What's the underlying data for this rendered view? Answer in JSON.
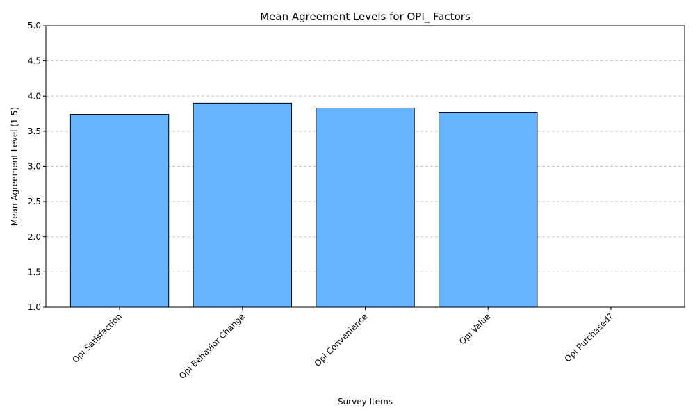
{
  "chart_data": {
    "type": "bar",
    "title": "Mean Agreement Levels for OPI_ Factors",
    "xlabel": "Survey Items",
    "ylabel": "Mean Agreement Level (1-5)",
    "categories": [
      "Opi Satisfaction",
      "Opi Behavior Change",
      "Opi Convenience",
      "Opi Value",
      "Opi Purchased?"
    ],
    "values": [
      3.74,
      3.9,
      3.83,
      3.77,
      null
    ],
    "ylim": [
      1.0,
      5.0
    ],
    "yticks": [
      1.0,
      1.5,
      2.0,
      2.5,
      3.0,
      3.5,
      4.0,
      4.5,
      5.0
    ],
    "grid": "y-dashed",
    "colors": {
      "bar_fill": "#66b3ff",
      "bar_edge": "#000000",
      "grid": "#c8c8c8",
      "axis": "#000000"
    }
  }
}
